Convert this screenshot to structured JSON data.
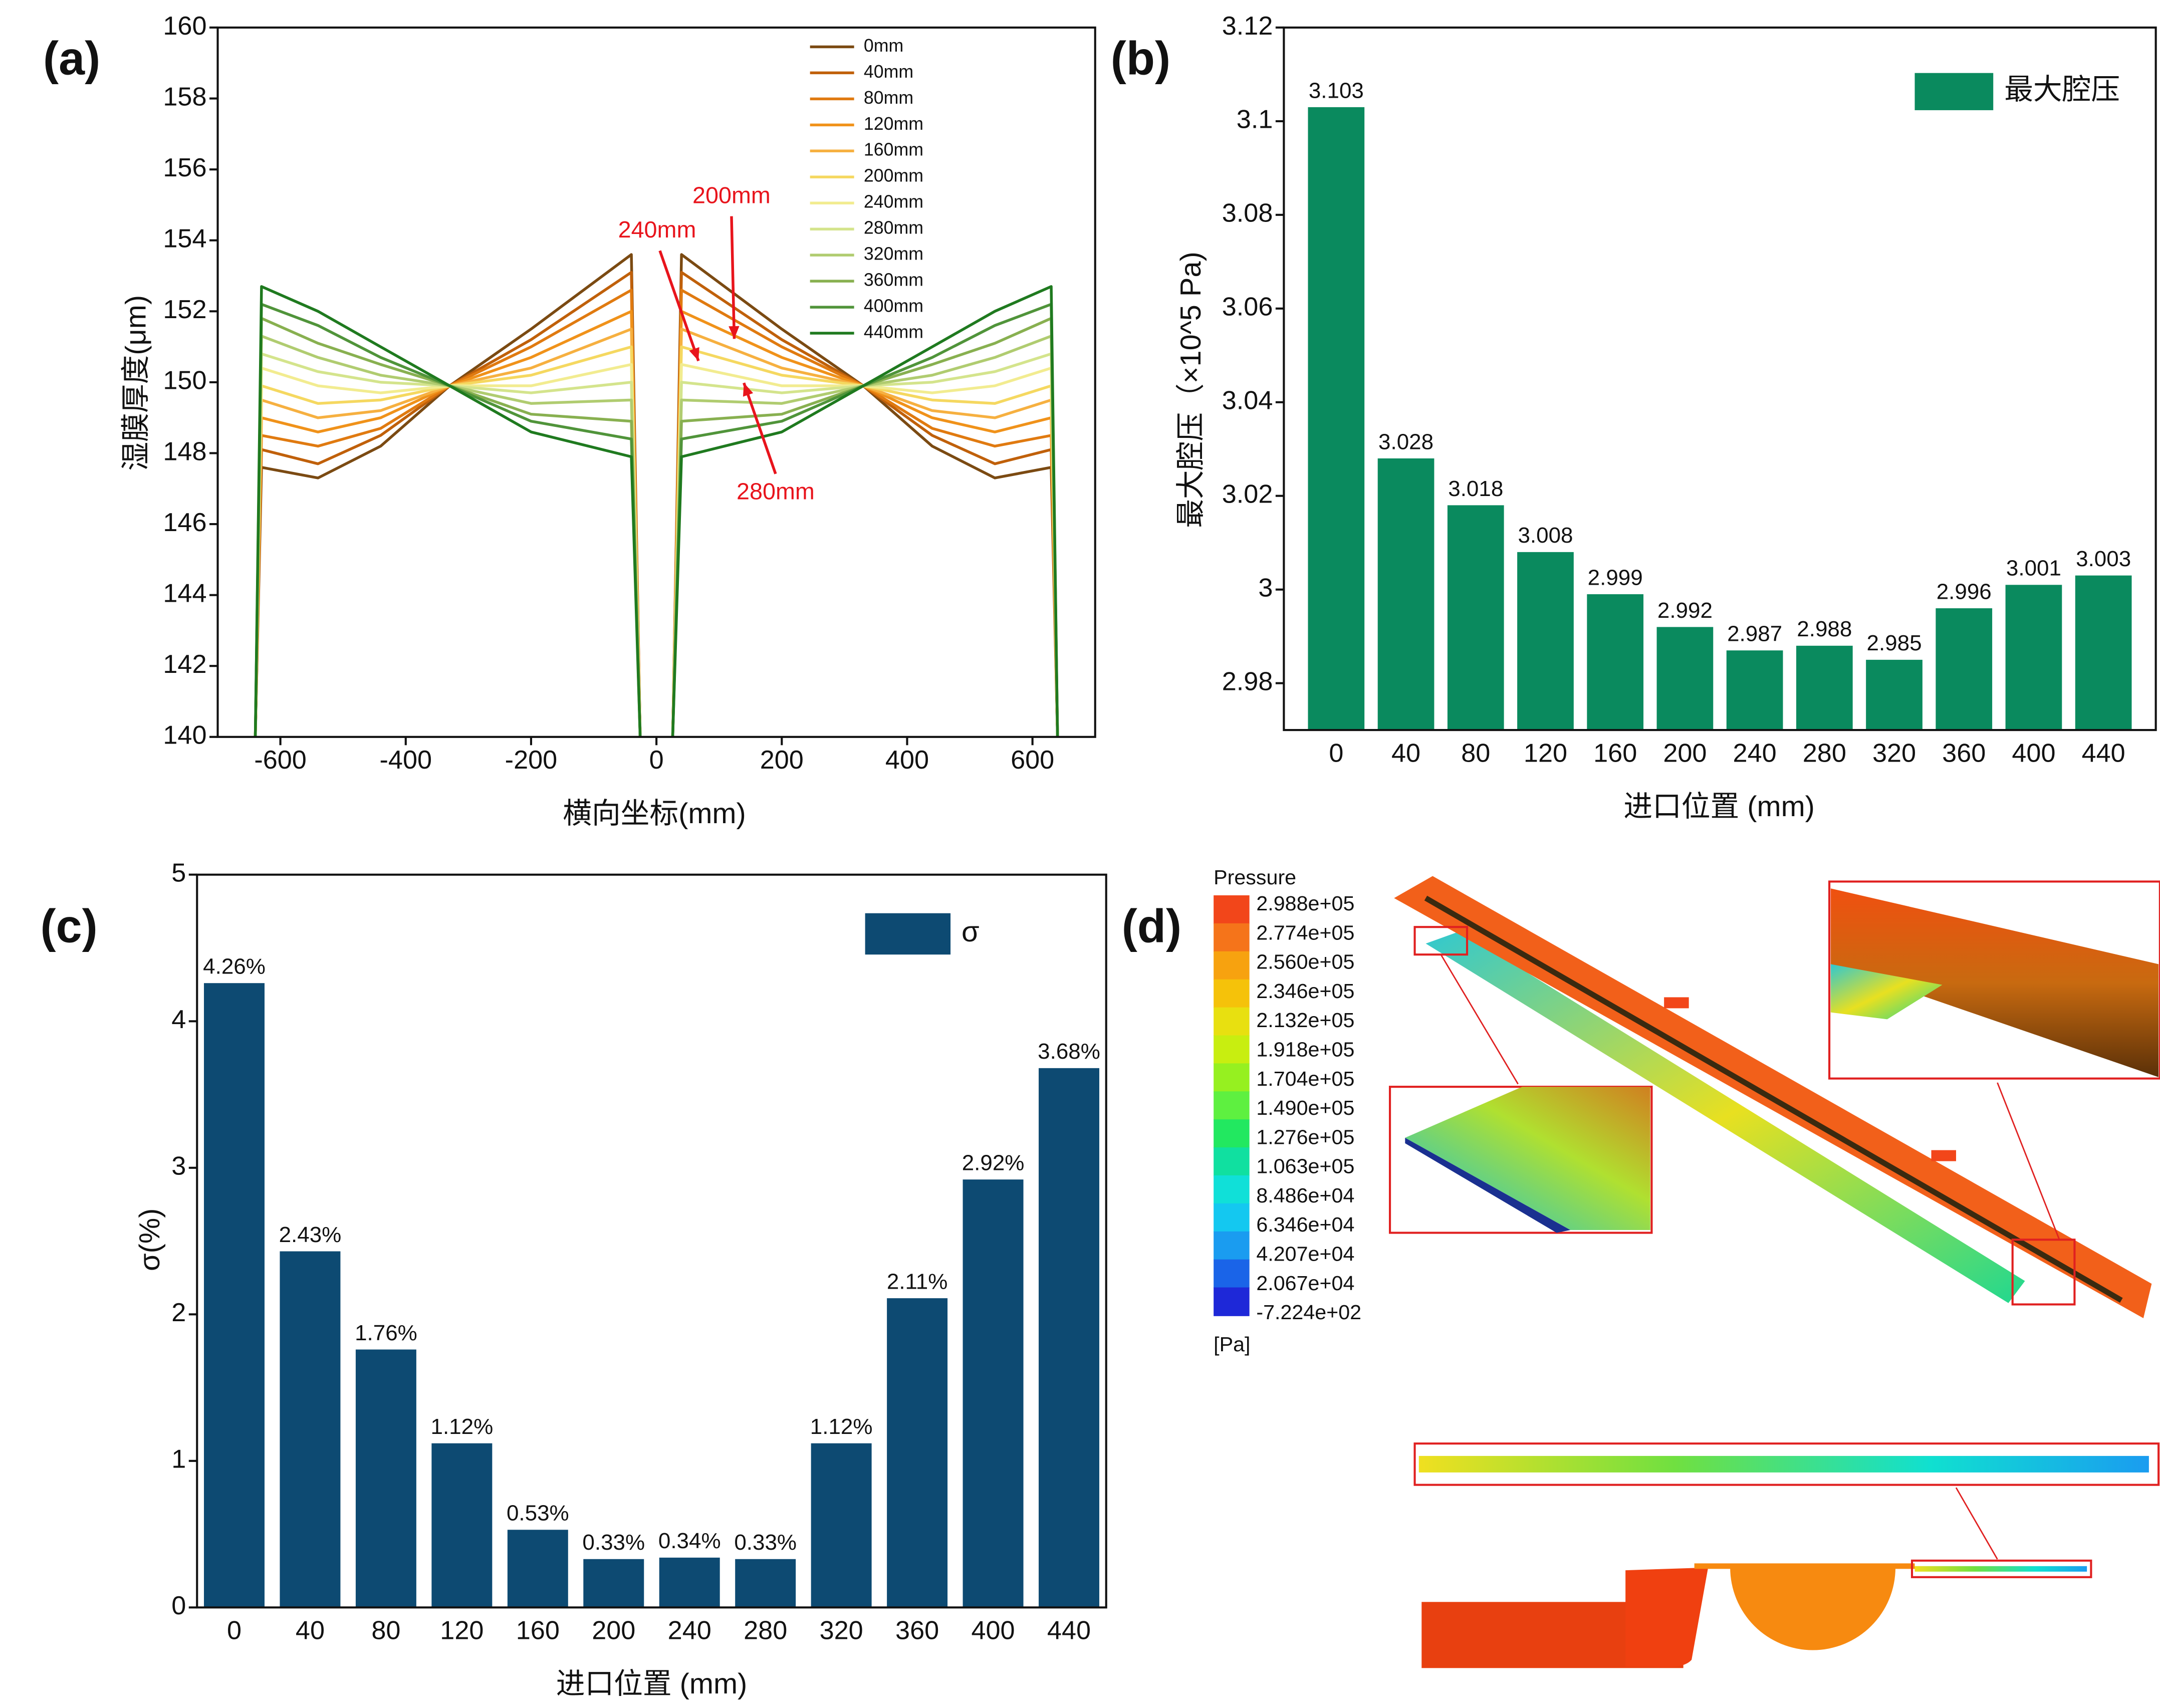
{
  "chart_data": [
    {
      "type": "line",
      "panel": "(a)",
      "xlabel": "横向坐标(mm)",
      "ylabel": "湿膜厚度(μm)",
      "xlim": [
        -700,
        700
      ],
      "xticks": [
        -600,
        -400,
        -200,
        0,
        200,
        400,
        600
      ],
      "ylim": [
        140,
        160
      ],
      "yticks": [
        140,
        142,
        144,
        146,
        148,
        150,
        152,
        154,
        156,
        158,
        160
      ],
      "x": [
        -640,
        -630,
        -540,
        -440,
        -330,
        -200,
        -40,
        -26,
        0,
        26,
        40,
        200,
        330,
        440,
        540,
        630,
        640
      ],
      "series": [
        {
          "name": "0mm",
          "color": "#7b4a12",
          "values": [
            140,
            147.6,
            147.3,
            148.2,
            149.9,
            151.5,
            153.6,
            140,
            null,
            140,
            153.6,
            151.5,
            149.9,
            148.2,
            147.3,
            147.6,
            140
          ]
        },
        {
          "name": "40mm",
          "color": "#c0600a",
          "values": [
            140,
            148.1,
            147.7,
            148.5,
            149.9,
            151.2,
            153.1,
            140,
            null,
            140,
            153.1,
            151.2,
            149.9,
            148.5,
            147.7,
            148.1,
            140
          ]
        },
        {
          "name": "80mm",
          "color": "#e07a10",
          "values": [
            140,
            148.5,
            148.2,
            148.7,
            149.9,
            151.0,
            152.6,
            140,
            null,
            140,
            152.6,
            151.0,
            149.9,
            148.7,
            148.2,
            148.5,
            140
          ]
        },
        {
          "name": "120mm",
          "color": "#f0921a",
          "values": [
            140,
            149.0,
            148.6,
            149.0,
            149.9,
            150.7,
            152.0,
            140,
            null,
            140,
            152.0,
            150.7,
            149.9,
            149.0,
            148.6,
            149.0,
            140
          ]
        },
        {
          "name": "160mm",
          "color": "#f6b040",
          "values": [
            140,
            149.5,
            149.0,
            149.2,
            149.9,
            150.4,
            151.5,
            140,
            null,
            140,
            151.5,
            150.4,
            149.9,
            149.2,
            149.0,
            149.5,
            140
          ]
        },
        {
          "name": "200mm",
          "color": "#f5d860",
          "values": [
            140,
            149.9,
            149.4,
            149.5,
            149.9,
            150.2,
            151.0,
            140,
            null,
            140,
            151.0,
            150.2,
            149.9,
            149.5,
            149.4,
            149.9,
            140
          ]
        },
        {
          "name": "240mm",
          "color": "#f2ec90",
          "values": [
            140,
            150.4,
            149.9,
            149.7,
            149.9,
            149.9,
            150.5,
            140,
            null,
            140,
            150.5,
            149.9,
            149.9,
            149.7,
            149.9,
            150.4,
            140
          ]
        },
        {
          "name": "280mm",
          "color": "#d4e48c",
          "values": [
            140,
            150.8,
            150.3,
            150.0,
            149.9,
            149.7,
            150.0,
            140,
            null,
            140,
            150.0,
            149.7,
            149.9,
            150.0,
            150.3,
            150.8,
            140
          ]
        },
        {
          "name": "320mm",
          "color": "#b0cc70",
          "values": [
            140,
            151.3,
            150.7,
            150.2,
            149.9,
            149.4,
            149.5,
            140,
            null,
            140,
            149.5,
            149.4,
            149.9,
            150.2,
            150.7,
            151.3,
            140
          ]
        },
        {
          "name": "360mm",
          "color": "#88b050",
          "values": [
            140,
            151.8,
            151.1,
            150.5,
            149.9,
            149.1,
            148.9,
            140,
            null,
            140,
            148.9,
            149.1,
            149.9,
            150.5,
            151.1,
            151.8,
            140
          ]
        },
        {
          "name": "400mm",
          "color": "#50943a",
          "values": [
            140,
            152.2,
            151.6,
            150.7,
            149.9,
            148.9,
            148.4,
            140,
            null,
            140,
            148.4,
            148.9,
            149.9,
            150.7,
            151.6,
            152.2,
            140
          ]
        },
        {
          "name": "440mm",
          "color": "#1f7a1f",
          "values": [
            140,
            152.7,
            152.0,
            151.0,
            149.9,
            148.6,
            147.9,
            140,
            null,
            140,
            147.9,
            148.6,
            149.9,
            151.0,
            152.0,
            152.7,
            140
          ]
        }
      ],
      "annotations": [
        {
          "text": "200mm",
          "color": "#e8141c"
        },
        {
          "text": "240mm",
          "color": "#e8141c"
        },
        {
          "text": "280mm",
          "color": "#e8141c"
        }
      ]
    },
    {
      "type": "bar",
      "panel": "(b)",
      "xlabel": "进口位置 (mm)",
      "ylabel": "最大腔压（×10^5 Pa)",
      "categories": [
        "0",
        "40",
        "80",
        "120",
        "160",
        "200",
        "240",
        "280",
        "320",
        "360",
        "400",
        "440"
      ],
      "series": [
        {
          "name": "最大腔压",
          "color": "#0a8a5e",
          "values": [
            3.103,
            3.028,
            3.018,
            3.008,
            2.999,
            2.992,
            2.987,
            2.988,
            2.985,
            2.996,
            3.001,
            3.003
          ]
        }
      ],
      "ylim": [
        2.97,
        3.12
      ],
      "yticks": [
        2.98,
        3,
        3.02,
        3.04,
        3.06,
        3.08,
        3.1,
        3.12
      ]
    },
    {
      "type": "bar",
      "panel": "(c)",
      "xlabel": "进口位置 (mm)",
      "ylabel": "σ(%)",
      "categories": [
        "0",
        "40",
        "80",
        "120",
        "160",
        "200",
        "240",
        "280",
        "320",
        "360",
        "400",
        "440"
      ],
      "series": [
        {
          "name": "σ",
          "color": "#0d4a72",
          "values": [
            4.26,
            2.43,
            1.76,
            1.12,
            0.53,
            0.33,
            0.34,
            0.33,
            1.12,
            2.11,
            2.92,
            3.68
          ],
          "value_labels": [
            "4.26%",
            "2.43%",
            "1.76%",
            "1.12%",
            "0.53%",
            "0.33%",
            "0.34%",
            "0.33%",
            "1.12%",
            "2.11%",
            "2.92%",
            "3.68%"
          ]
        }
      ],
      "ylim": [
        0,
        5
      ],
      "yticks": [
        0,
        1,
        2,
        3,
        4,
        5
      ]
    }
  ],
  "figure_d": {
    "panel": "(d)",
    "legend_title": "Pressure",
    "unit": "[Pa]",
    "levels": [
      "2.988e+05",
      "2.774e+05",
      "2.560e+05",
      "2.346e+05",
      "2.132e+05",
      "1.918e+05",
      "1.704e+05",
      "1.490e+05",
      "1.276e+05",
      "1.063e+05",
      "8.486e+04",
      "6.346e+04",
      "4.207e+04",
      "2.067e+04",
      "-7.224e+02"
    ],
    "colors": [
      "#f2461a",
      "#f5741a",
      "#f7a20f",
      "#f5c20a",
      "#e8e010",
      "#c8ee10",
      "#96f020",
      "#5ef040",
      "#22e860",
      "#10e0a0",
      "#10e0d8",
      "#14c8f0",
      "#1a9cf0",
      "#1a64e8",
      "#1e28d8"
    ]
  }
}
